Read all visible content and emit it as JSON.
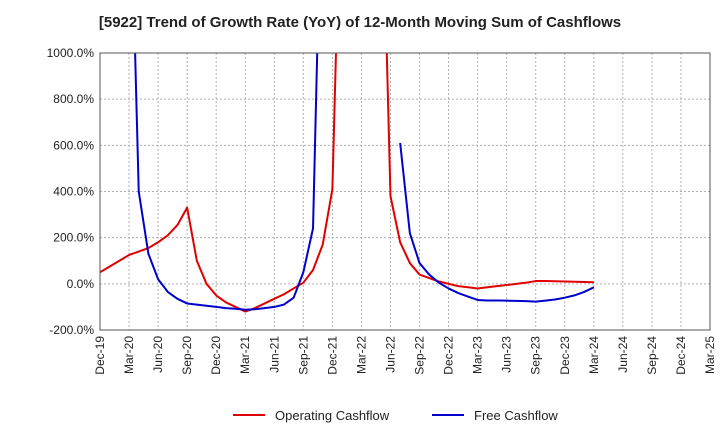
{
  "chart_data": {
    "type": "line",
    "title": "[5922]  Trend of Growth Rate (YoY) of 12-Month Moving Sum of Cashflows",
    "xlabel": "",
    "ylabel": "",
    "ylim": [
      -200,
      1000
    ],
    "yticks": [
      "1000.0%",
      "800.0%",
      "600.0%",
      "400.0%",
      "200.0%",
      "0.0%",
      "-200.0%"
    ],
    "ytick_values": [
      1000,
      800,
      600,
      400,
      200,
      0,
      -200
    ],
    "xticks": [
      "Dec-19",
      "Mar-20",
      "Jun-20",
      "Sep-20",
      "Dec-20",
      "Mar-21",
      "Jun-21",
      "Sep-21",
      "Dec-21",
      "Mar-22",
      "Jun-22",
      "Sep-22",
      "Dec-22",
      "Mar-23",
      "Jun-23",
      "Sep-23",
      "Dec-23",
      "Mar-24",
      "Jun-24",
      "Sep-24",
      "Dec-24",
      "Mar-25"
    ],
    "grid": true,
    "legend": "bottom",
    "colors": {
      "Operating Cashflow": "#e00000",
      "Free Cashflow": "#0000cc"
    },
    "series": [
      {
        "name": "Operating Cashflow",
        "points": [
          [
            "Dec-19",
            50
          ],
          [
            "Jan-20",
            75
          ],
          [
            "Feb-20",
            100
          ],
          [
            "Mar-20",
            125
          ],
          [
            "Apr-20",
            140
          ],
          [
            "May-20",
            155
          ],
          [
            "Jun-20",
            180
          ],
          [
            "Jul-20",
            210
          ],
          [
            "Aug-20",
            255
          ],
          [
            "Sep-20",
            330
          ],
          [
            "Oct-20",
            100
          ],
          [
            "Nov-20",
            0
          ],
          [
            "Dec-20",
            -50
          ],
          [
            "Jan-21",
            -80
          ],
          [
            "Feb-21",
            -100
          ],
          [
            "Mar-21",
            -120
          ],
          [
            "Apr-21",
            -105
          ],
          [
            "May-21",
            -85
          ],
          [
            "Jun-21",
            -65
          ],
          [
            "Jul-21",
            -45
          ],
          [
            "Aug-21",
            -20
          ],
          [
            "Sep-21",
            5
          ],
          [
            "Oct-21",
            60
          ],
          [
            "Nov-21",
            170
          ],
          [
            "Dec-21",
            410
          ],
          [
            "Jan-22",
            2000
          ],
          [
            "May-22",
            2000
          ],
          [
            "Jun-22",
            380
          ],
          [
            "Jul-22",
            180
          ],
          [
            "Aug-22",
            90
          ],
          [
            "Sep-22",
            40
          ],
          [
            "Oct-22",
            25
          ],
          [
            "Nov-22",
            10
          ],
          [
            "Dec-22",
            0
          ],
          [
            "Jan-23",
            -10
          ],
          [
            "Feb-23",
            -15
          ],
          [
            "Mar-23",
            -20
          ],
          [
            "Apr-23",
            -15
          ],
          [
            "May-23",
            -10
          ],
          [
            "Jun-23",
            -5
          ],
          [
            "Jul-23",
            0
          ],
          [
            "Aug-23",
            5
          ],
          [
            "Sep-23",
            12
          ],
          [
            "Oct-23",
            12
          ],
          [
            "Nov-23",
            11
          ],
          [
            "Dec-23",
            10
          ],
          [
            "Jan-24",
            9
          ],
          [
            "Feb-24",
            8
          ],
          [
            "Mar-24",
            7
          ]
        ]
      },
      {
        "name": "Free Cashflow",
        "points": [
          [
            "Mar-20",
            2000
          ],
          [
            "Apr-20",
            400
          ],
          [
            "May-20",
            130
          ],
          [
            "Jun-20",
            20
          ],
          [
            "Jul-20",
            -35
          ],
          [
            "Aug-20",
            -65
          ],
          [
            "Sep-20",
            -85
          ],
          [
            "Oct-20",
            -90
          ],
          [
            "Nov-20",
            -95
          ],
          [
            "Dec-20",
            -100
          ],
          [
            "Jan-21",
            -105
          ],
          [
            "Feb-21",
            -108
          ],
          [
            "Mar-21",
            -112
          ],
          [
            "Apr-21",
            -110
          ],
          [
            "May-21",
            -105
          ],
          [
            "Jun-21",
            -100
          ],
          [
            "Jul-21",
            -90
          ],
          [
            "Aug-21",
            -60
          ],
          [
            "Sep-21",
            50
          ],
          [
            "Oct-21",
            240
          ],
          [
            "Nov-21",
            2000
          ]
        ]
      },
      {
        "name": "Free Cashflow",
        "points": [
          [
            "Jul-22",
            610
          ],
          [
            "Aug-22",
            220
          ],
          [
            "Sep-22",
            90
          ],
          [
            "Oct-22",
            40
          ],
          [
            "Nov-22",
            5
          ],
          [
            "Dec-22",
            -20
          ],
          [
            "Jan-23",
            -40
          ],
          [
            "Feb-23",
            -55
          ],
          [
            "Mar-23",
            -70
          ],
          [
            "Apr-23",
            -72
          ],
          [
            "May-23",
            -72
          ],
          [
            "Jun-23",
            -73
          ],
          [
            "Jul-23",
            -74
          ],
          [
            "Aug-23",
            -75
          ],
          [
            "Sep-23",
            -77
          ],
          [
            "Oct-23",
            -73
          ],
          [
            "Nov-23",
            -68
          ],
          [
            "Dec-23",
            -60
          ],
          [
            "Jan-24",
            -50
          ],
          [
            "Feb-24",
            -35
          ],
          [
            "Mar-24",
            -15
          ]
        ]
      }
    ]
  },
  "legend": {
    "items": [
      {
        "label": "Operating Cashflow",
        "color": "#e00000"
      },
      {
        "label": "Free Cashflow",
        "color": "#0000cc"
      }
    ]
  }
}
